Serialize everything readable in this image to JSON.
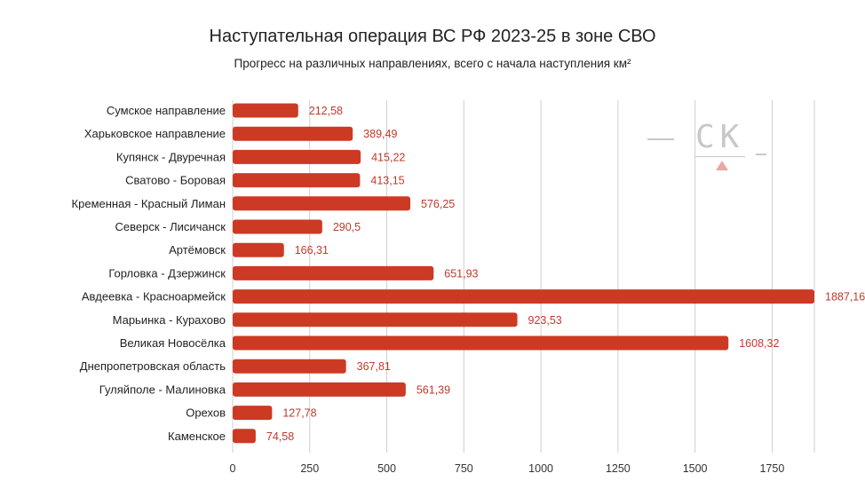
{
  "chart_data": {
    "type": "bar",
    "orientation": "horizontal",
    "title": "Наступательная операция ВС РФ 2023-25 в зоне СВО",
    "subtitle": "Прогресс на различных направлениях, всего с начала наступления км²",
    "categories": [
      "Сумское направление",
      "Харьковское направление",
      "Купянск - Двуречная",
      "Сватово - Боровая",
      "Кременная - Красный Лиман",
      "Северск - Лисичанск",
      "Артёмовск",
      "Горловка - Дзержинск",
      "Авдеевка - Красноармейск",
      "Марьинка - Курахово",
      "Великая Новосёлка",
      "Днепропетровская область",
      "Гуляйполе - Малиновка",
      "Орехов",
      "Каменское"
    ],
    "values": [
      212.58,
      389.49,
      415.22,
      413.15,
      576.25,
      290.5,
      166.31,
      651.93,
      1887.16,
      923.53,
      1608.32,
      367.81,
      561.39,
      127.78,
      74.58
    ],
    "value_labels": [
      "212,58",
      "389,49",
      "415,22",
      "413,15",
      "576,25",
      "290,5",
      "166,31",
      "651,93",
      "1887,16",
      "923,53",
      "1608,32",
      "367,81",
      "561,39",
      "127,78",
      "74,58"
    ],
    "xticks": [
      0,
      250,
      500,
      750,
      1000,
      1250,
      1500,
      1750
    ],
    "xlim": [
      0,
      1887.16
    ],
    "grid": true,
    "bar_color": "#cc3a24",
    "label_color": "#c0392b"
  },
  "watermark": {
    "text": "СК"
  }
}
